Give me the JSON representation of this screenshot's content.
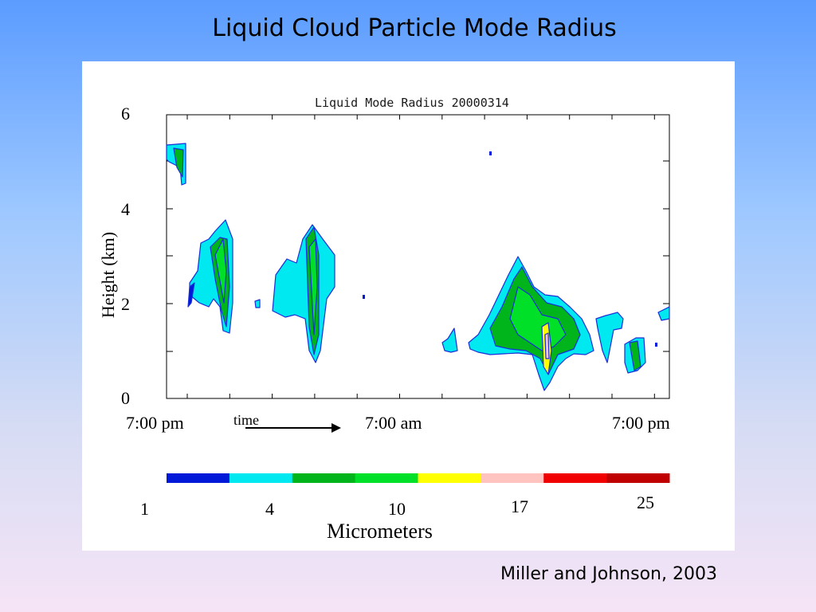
{
  "slide": {
    "title": "Liquid Cloud Particle Mode Radius",
    "credit": "Miller and Johnson, 2003"
  },
  "chart_data": {
    "type": "heatmap",
    "title": "Liquid Mode Radius 20000314",
    "ylabel": "Height (km)",
    "ylim": [
      0,
      6
    ],
    "yticks": [
      "0",
      "2",
      "4",
      "6"
    ],
    "xticks": [
      "7:00 pm",
      "7:00 am",
      "7:00 pm"
    ],
    "time_label": "time",
    "colorbar": {
      "label": "Micrometers",
      "tick_labels": [
        "1",
        "4",
        "10",
        "17",
        "25"
      ],
      "colors": [
        "#0018d8",
        "#00e8f0",
        "#00b41c",
        "#00e028",
        "#ffff00",
        "#ffc4c0",
        "#f00000",
        "#c00000"
      ]
    }
  }
}
